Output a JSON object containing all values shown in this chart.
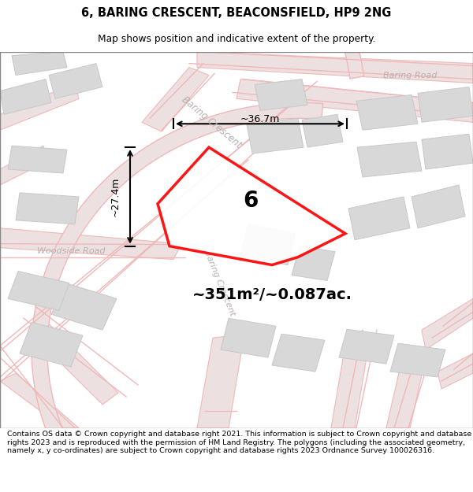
{
  "title": "6, BARING CRESCENT, BEACONSFIELD, HP9 2NG",
  "subtitle": "Map shows position and indicative extent of the property.",
  "footer": "Contains OS data © Crown copyright and database right 2021. This information is subject to Crown copyright and database rights 2023 and is reproduced with the permission of HM Land Registry. The polygons (including the associated geometry, namely x, y co-ordinates) are subject to Crown copyright and database rights 2023 Ordnance Survey 100026316.",
  "area_label": "~351m²/~0.087ac.",
  "number_label": "6",
  "width_label": "~36.7m",
  "height_label": "~27.4m",
  "road_color": "#f0b8b8",
  "building_color": "#d8d8d8",
  "building_edge": "#c8c8c8",
  "road_fill": "#e8d8d8",
  "map_bg": "#f8f6f4"
}
